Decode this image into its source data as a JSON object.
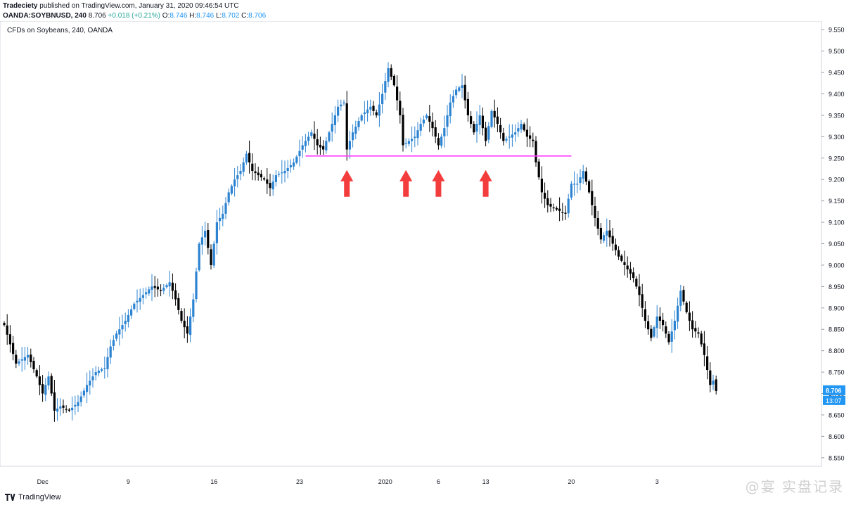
{
  "header": {
    "publisher": "Tradeciety",
    "published_text": "published on TradingView.com, January 31, 2020 09:46:54 UTC",
    "symbol": "OANDA:SOYBNUSD, 240",
    "last": "8.706",
    "change": "+0.018 (+0.21%)",
    "open_label": "O:",
    "open": "8.746",
    "high_label": "H:",
    "high": "8.746",
    "low_label": "L:",
    "low": "8.702",
    "close_label": "C:",
    "close": "8.706"
  },
  "footer": {
    "brand": "TradingView"
  },
  "watermark": "@宴   实盘记录",
  "colors": {
    "up": "#2b83d1",
    "down": "#000000",
    "support": "#ff40ff",
    "arrow": "#f33d3d",
    "price_tag": "#2196f3"
  },
  "chart_data": {
    "type": "candlestick",
    "title": "CFDs on Soybeans, 240, OANDA",
    "y_ticks": [
      "9.550",
      "9.500",
      "9.450",
      "9.400",
      "9.350",
      "9.300",
      "9.250",
      "9.200",
      "9.150",
      "9.100",
      "9.050",
      "9.000",
      "8.950",
      "8.900",
      "8.850",
      "8.800",
      "8.750",
      "8.700",
      "8.650",
      "8.600",
      "8.550"
    ],
    "ylim": [
      8.53,
      9.57
    ],
    "x_ticks": [
      "Dec",
      "9",
      "16",
      "23",
      "2020",
      "6",
      "13",
      "20",
      "3"
    ],
    "last_price_label": "8.706",
    "countdown_label": "13:07",
    "support_level": 9.255,
    "annotations": {
      "arrows_at_bars": [
        116,
        136,
        147,
        163
      ]
    },
    "close_path": [
      [
        0,
        8.86
      ],
      [
        4,
        8.77
      ],
      [
        8,
        8.79
      ],
      [
        11,
        8.74
      ],
      [
        13,
        8.7
      ],
      [
        15,
        8.74
      ],
      [
        17,
        8.66
      ],
      [
        19,
        8.67
      ],
      [
        22,
        8.66
      ],
      [
        25,
        8.68
      ],
      [
        28,
        8.72
      ],
      [
        31,
        8.75
      ],
      [
        34,
        8.76
      ],
      [
        36,
        8.81
      ],
      [
        38,
        8.84
      ],
      [
        41,
        8.87
      ],
      [
        44,
        8.91
      ],
      [
        47,
        8.93
      ],
      [
        50,
        8.95
      ],
      [
        53,
        8.94
      ],
      [
        56,
        8.96
      ],
      [
        58,
        8.92
      ],
      [
        60,
        8.87
      ],
      [
        62,
        8.84
      ],
      [
        64,
        8.92
      ],
      [
        66,
        9.05
      ],
      [
        68,
        9.08
      ],
      [
        70,
        9.0
      ],
      [
        72,
        9.1
      ],
      [
        74,
        9.12
      ],
      [
        76,
        9.17
      ],
      [
        78,
        9.2
      ],
      [
        80,
        9.22
      ],
      [
        82,
        9.26
      ],
      [
        84,
        9.22
      ],
      [
        86,
        9.21
      ],
      [
        88,
        9.2
      ],
      [
        90,
        9.18
      ],
      [
        92,
        9.21
      ],
      [
        95,
        9.22
      ],
      [
        98,
        9.24
      ],
      [
        101,
        9.28
      ],
      [
        104,
        9.31
      ],
      [
        106,
        9.28
      ],
      [
        108,
        9.27
      ],
      [
        111,
        9.33
      ],
      [
        113,
        9.37
      ],
      [
        115,
        9.38
      ],
      [
        116,
        9.27
      ],
      [
        118,
        9.31
      ],
      [
        121,
        9.35
      ],
      [
        124,
        9.37
      ],
      [
        126,
        9.35
      ],
      [
        128,
        9.4
      ],
      [
        130,
        9.46
      ],
      [
        132,
        9.42
      ],
      [
        134,
        9.35
      ],
      [
        135,
        9.28
      ],
      [
        137,
        9.29
      ],
      [
        139,
        9.3
      ],
      [
        141,
        9.33
      ],
      [
        143,
        9.35
      ],
      [
        145,
        9.32
      ],
      [
        147,
        9.28
      ],
      [
        149,
        9.32
      ],
      [
        151,
        9.38
      ],
      [
        153,
        9.41
      ],
      [
        155,
        9.42
      ],
      [
        157,
        9.35
      ],
      [
        159,
        9.31
      ],
      [
        161,
        9.35
      ],
      [
        163,
        9.29
      ],
      [
        165,
        9.36
      ],
      [
        167,
        9.33
      ],
      [
        169,
        9.29
      ],
      [
        171,
        9.3
      ],
      [
        173,
        9.31
      ],
      [
        175,
        9.33
      ],
      [
        177,
        9.3
      ],
      [
        179,
        9.29
      ],
      [
        180,
        9.24
      ],
      [
        182,
        9.17
      ],
      [
        184,
        9.14
      ],
      [
        187,
        9.13
      ],
      [
        190,
        9.12
      ],
      [
        192,
        9.19
      ],
      [
        194,
        9.19
      ],
      [
        196,
        9.22
      ],
      [
        198,
        9.17
      ],
      [
        200,
        9.11
      ],
      [
        202,
        9.06
      ],
      [
        204,
        9.08
      ],
      [
        206,
        9.05
      ],
      [
        208,
        9.02
      ],
      [
        211,
        8.99
      ],
      [
        213,
        8.97
      ],
      [
        215,
        8.93
      ],
      [
        217,
        8.87
      ],
      [
        219,
        8.83
      ],
      [
        221,
        8.88
      ],
      [
        223,
        8.86
      ],
      [
        225,
        8.82
      ],
      [
        227,
        8.87
      ],
      [
        229,
        8.94
      ],
      [
        231,
        8.89
      ],
      [
        233,
        8.85
      ],
      [
        235,
        8.84
      ],
      [
        237,
        8.79
      ],
      [
        239,
        8.72
      ],
      [
        240,
        8.73
      ],
      [
        241,
        8.706
      ]
    ]
  }
}
